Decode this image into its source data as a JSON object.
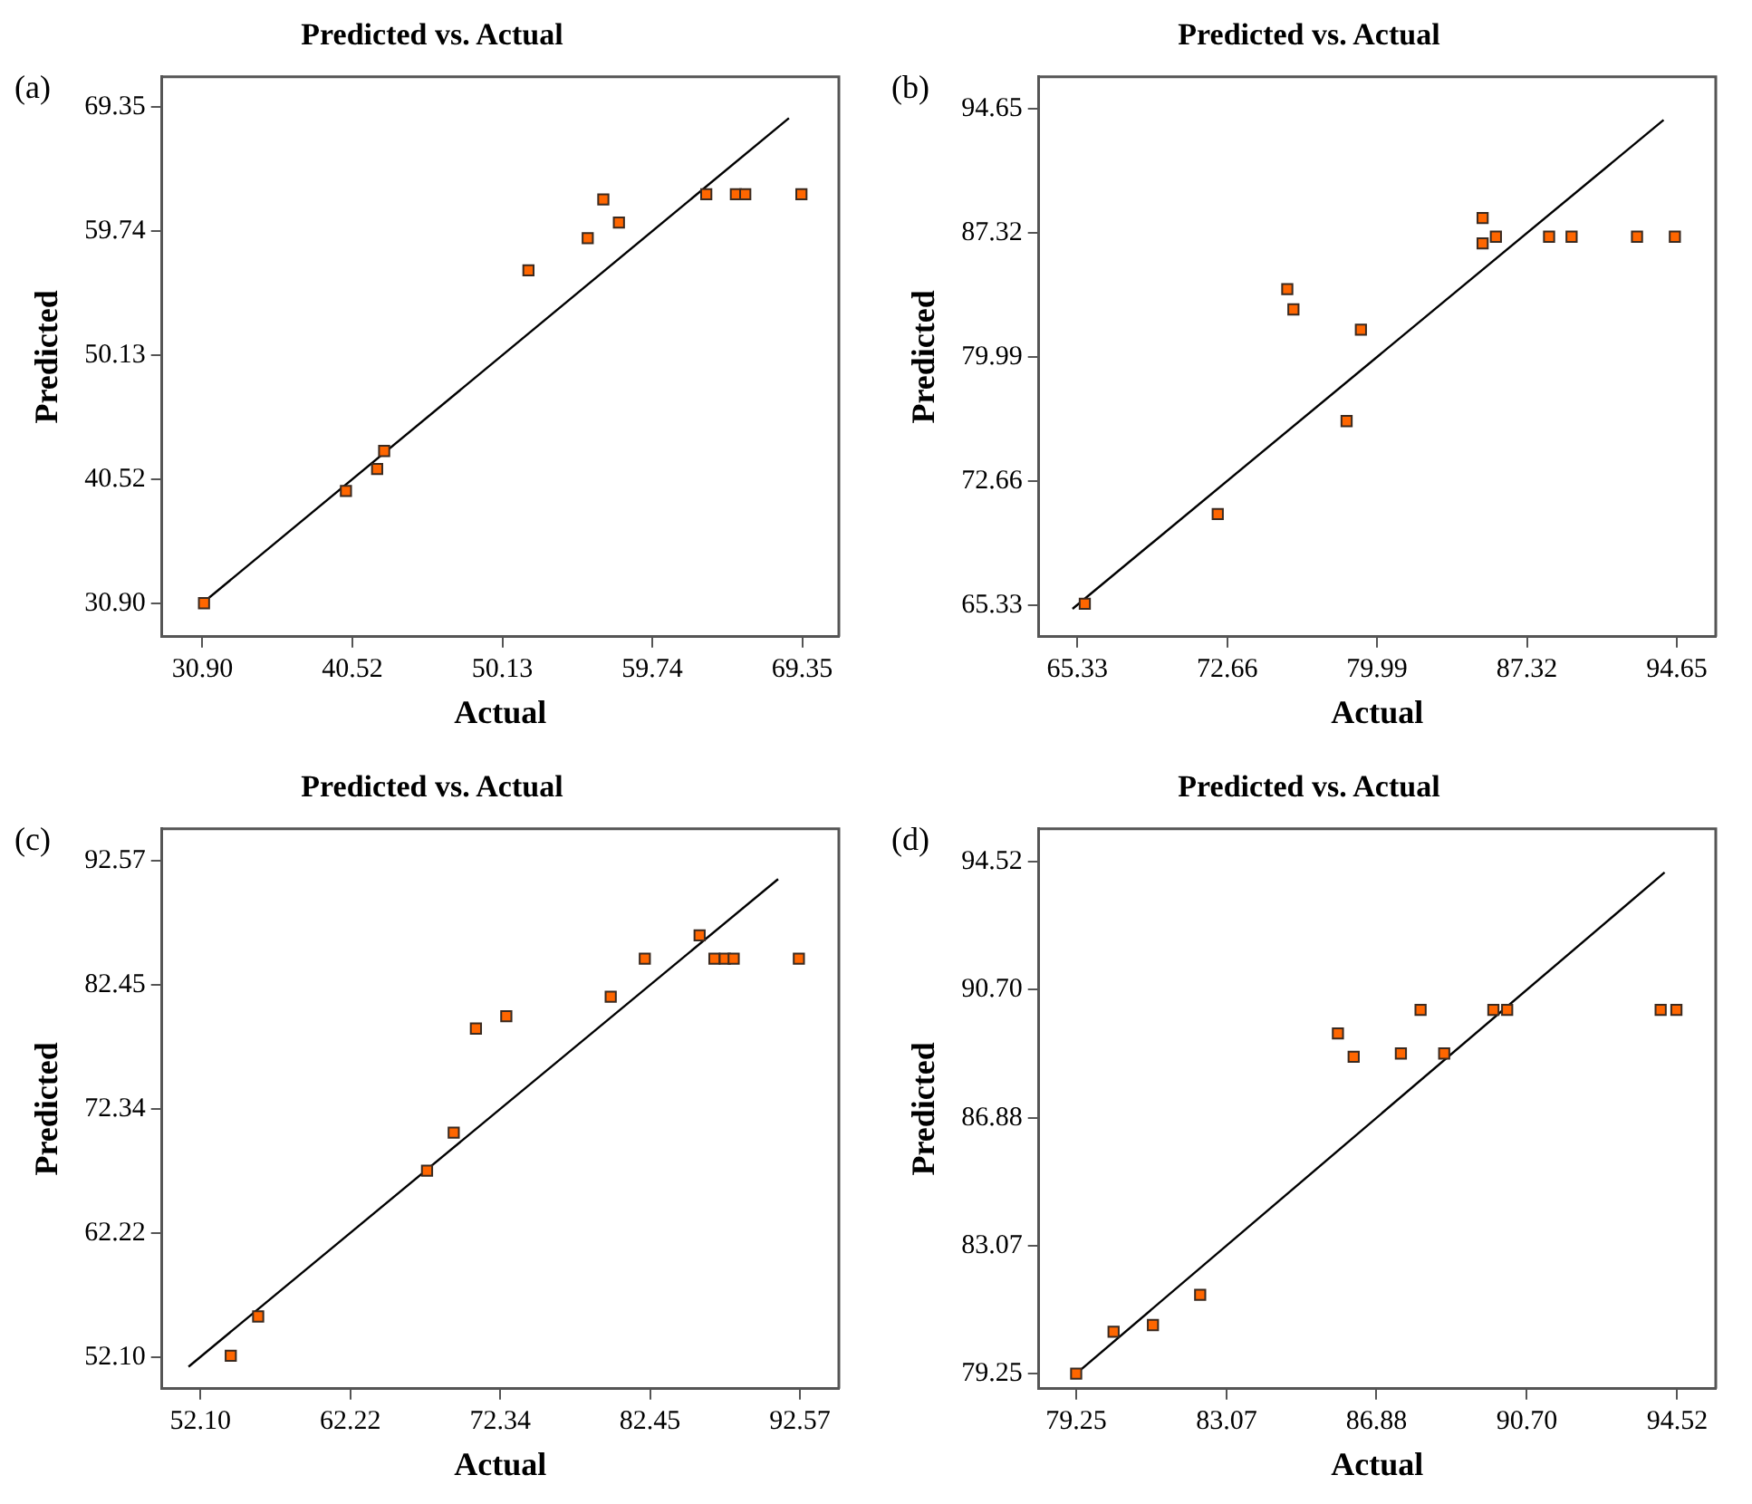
{
  "chart_data": [
    {
      "type": "scatter",
      "title": "Predicted vs. Actual",
      "xlabel": "Actual",
      "ylabel": "Predicted",
      "annotations": [
        "(a)"
      ],
      "xlim": [
        28.3,
        71.7
      ],
      "ylim": [
        28.3,
        71.7
      ],
      "xticks": [
        {
          "value": 30.9,
          "label": "30.90"
        },
        40.52,
        50.13,
        59.74,
        69.35
      ],
      "yticks": [
        {
          "value": 30.9,
          "label": "30.90"
        },
        40.52,
        50.13,
        59.74,
        69.35
      ],
      "series": [
        {
          "type": "scatter",
          "marker": "square",
          "color": "#ff6600",
          "x": [
            31.0,
            40.1,
            42.1,
            42.55,
            51.8,
            55.6,
            56.6,
            57.6,
            63.2,
            65.1,
            65.7,
            69.3
          ],
          "values": [
            30.9,
            39.6,
            41.3,
            42.7,
            56.7,
            59.2,
            62.2,
            60.4,
            62.6,
            62.6,
            62.6,
            62.6
          ]
        },
        {
          "type": "line",
          "marker": "none",
          "color": "#000000",
          "x": [
            30.9,
            68.5
          ],
          "values": [
            30.9,
            68.5
          ]
        }
      ]
    },
    {
      "type": "scatter",
      "title": "Predicted vs. Actual",
      "xlabel": "Actual",
      "ylabel": "Predicted",
      "annotations": [
        "(b)"
      ],
      "xlim": [
        63.45,
        96.55
      ],
      "ylim": [
        63.45,
        96.55
      ],
      "xticks": [
        65.33,
        72.66,
        79.99,
        87.32,
        94.65
      ],
      "yticks": [
        65.33,
        72.66,
        79.99,
        87.32,
        94.65
      ],
      "series": [
        {
          "type": "scatter",
          "marker": "square",
          "color": "#ff6600",
          "x": [
            65.7,
            72.2,
            75.6,
            75.9,
            78.5,
            79.2,
            85.15,
            85.15,
            85.8,
            88.4,
            89.5,
            92.7,
            94.55
          ],
          "values": [
            65.4,
            70.7,
            84.0,
            82.8,
            76.2,
            81.6,
            88.2,
            86.7,
            87.1,
            87.1,
            87.1,
            87.1,
            87.1
          ]
        },
        {
          "type": "line",
          "marker": "none",
          "color": "#000000",
          "x": [
            65.1,
            94.0
          ],
          "values": [
            65.1,
            94.0
          ]
        }
      ]
    },
    {
      "type": "scatter",
      "title": "Predicted vs. Actual",
      "xlabel": "Actual",
      "ylabel": "Predicted",
      "annotations": [
        "(c)"
      ],
      "xlim": [
        49.5,
        95.2
      ],
      "ylim": [
        49.5,
        95.2
      ],
      "xticks": [
        {
          "value": 52.1,
          "label": "52.10"
        },
        62.22,
        72.34,
        82.45,
        92.57
      ],
      "yticks": [
        {
          "value": 52.1,
          "label": "52.10"
        },
        62.22,
        72.34,
        82.45,
        92.57
      ],
      "series": [
        {
          "type": "scatter",
          "marker": "square",
          "color": "#ff6600",
          "x": [
            54.15,
            56.0,
            67.4,
            69.2,
            70.7,
            72.75,
            79.8,
            82.1,
            85.8,
            86.8,
            87.5,
            88.1,
            92.5
          ],
          "values": [
            52.2,
            55.4,
            67.3,
            70.4,
            78.9,
            79.9,
            81.5,
            84.6,
            86.5,
            84.6,
            84.6,
            84.6,
            84.6
          ]
        },
        {
          "type": "line",
          "marker": "none",
          "color": "#000000",
          "x": [
            51.3,
            91.1
          ],
          "values": [
            51.3,
            91.1
          ]
        }
      ]
    },
    {
      "type": "scatter",
      "title": "Predicted vs. Actual",
      "xlabel": "Actual",
      "ylabel": "Predicted",
      "annotations": [
        "(d)"
      ],
      "xlim": [
        78.3,
        95.5
      ],
      "ylim": [
        78.8,
        95.5
      ],
      "xticks": [
        79.25,
        83.07,
        86.88,
        {
          "value": 90.7,
          "label": "90.70"
        },
        94.52
      ],
      "yticks": [
        79.25,
        83.07,
        86.88,
        {
          "value": 90.7,
          "label": "90.70"
        },
        94.52
      ],
      "series": [
        {
          "type": "scatter",
          "marker": "square",
          "color": "#ff6600",
          "x": [
            79.25,
            80.2,
            81.2,
            82.4,
            85.9,
            86.3,
            87.5,
            88.0,
            88.6,
            89.85,
            90.2,
            94.1,
            94.5
          ],
          "values": [
            79.25,
            80.5,
            80.7,
            81.6,
            89.4,
            88.7,
            88.8,
            90.1,
            88.8,
            90.1,
            90.1,
            90.1,
            90.1
          ]
        },
        {
          "type": "line",
          "marker": "none",
          "color": "#000000",
          "x": [
            79.25,
            94.2
          ],
          "values": [
            79.25,
            94.2
          ]
        }
      ]
    }
  ]
}
